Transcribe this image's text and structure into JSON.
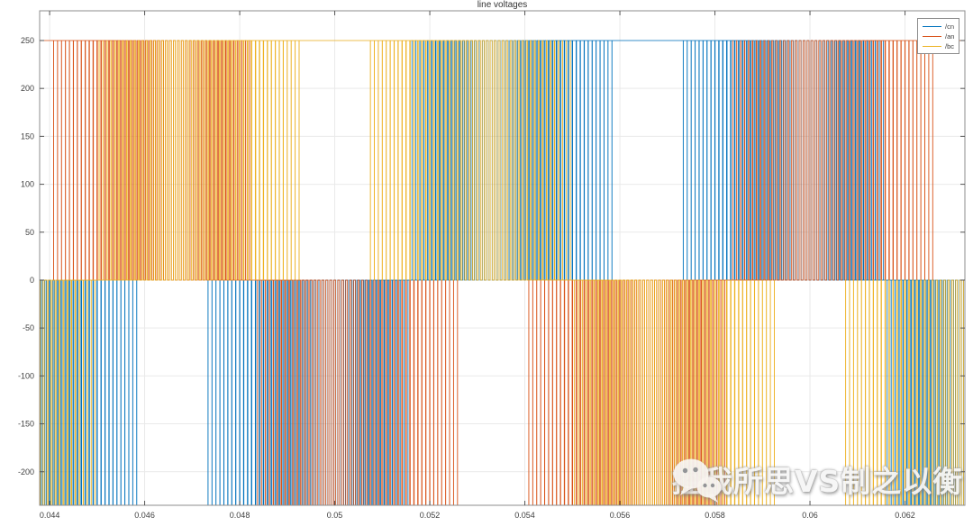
{
  "figure": {
    "title": "line voltages",
    "background": "#ffffff"
  },
  "axes": {
    "xlim": [
      0.04379,
      0.06326
    ],
    "ylim": [
      -235,
      281
    ],
    "xticks": [
      0.044,
      0.046,
      0.048,
      0.05,
      0.052,
      0.054,
      0.056,
      0.058,
      0.06,
      0.062
    ],
    "xtick_labels": [
      "0.044",
      "0.046",
      "0.048",
      "0.05",
      "0.052",
      "0.054",
      "0.056",
      "0.058",
      "0.06",
      "0.062"
    ],
    "yticks": [
      250,
      200,
      150,
      100,
      50,
      0,
      -50,
      -100,
      -150,
      -200
    ],
    "ytick_labels": [
      "250",
      "200",
      "150",
      "100",
      "50",
      "0",
      "-50",
      "-100",
      "-150",
      "-200"
    ],
    "grid_color": "#e9e9e9",
    "axis_color": "#8c8c8c",
    "tick_color": "#555555",
    "tick_label_color": "#404040"
  },
  "legend": {
    "items": [
      {
        "label": "/cn",
        "color": "#0072BD"
      },
      {
        "label": "/an",
        "color": "#D95319"
      },
      {
        "label": "/bc",
        "color": "#EDB120"
      }
    ]
  },
  "chart_data": {
    "type": "line",
    "title": "line voltages",
    "xlabel": "",
    "ylabel": "",
    "xlim": [
      0.04379,
      0.06326
    ],
    "ylim": [
      -235,
      281
    ],
    "grid": true,
    "legend_position": "top-right",
    "signal_model": "three-phase sine-triangle PWM voltages, 3-level pulses 0/+250/-250, bottom rail clipped by axis",
    "amplitude": 250,
    "fundamental_hz": 50,
    "carrier_hz": 12000,
    "modulation_index": 1.0,
    "series": [
      {
        "name": "/cn",
        "color": "#0072BD",
        "positive_zero_cross_s": 0.0516
      },
      {
        "name": "/an",
        "color": "#D95319",
        "positive_zero_cross_s": 0.0583
      },
      {
        "name": "/bc",
        "color": "#EDB120",
        "positive_zero_cross_s": 0.045
      }
    ]
  },
  "watermark": {
    "text": "控我所思VS制之以衡",
    "icon": "wechat-icon"
  }
}
